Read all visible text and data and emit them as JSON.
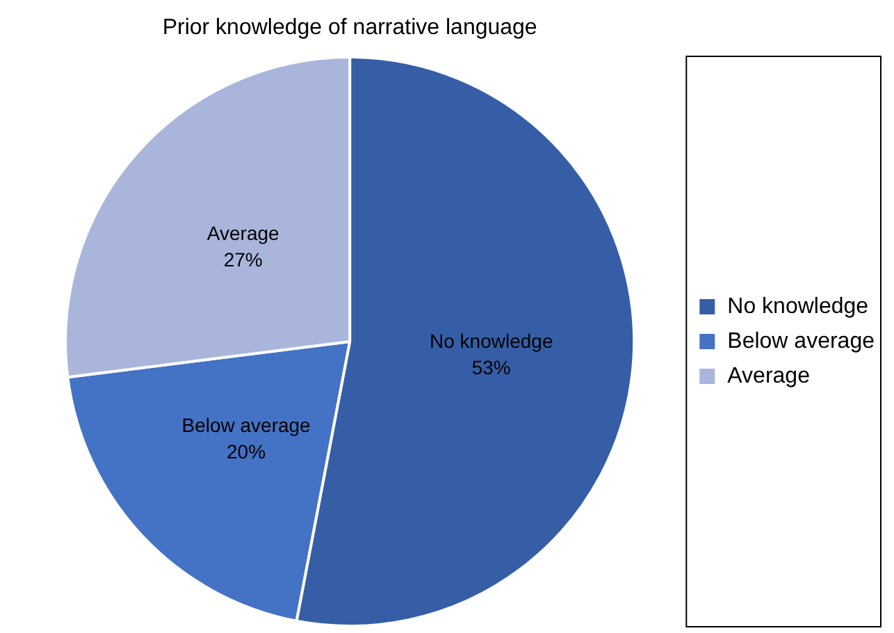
{
  "chart_data": {
    "type": "pie",
    "title": "Prior knowledge of narrative language",
    "categories": [
      "No knowledge",
      "Below average",
      "Average"
    ],
    "values": [
      53,
      20,
      27
    ],
    "value_labels": [
      "53%",
      "20%",
      "27%"
    ],
    "colors": [
      "#365ea7",
      "#4472c4",
      "#a9b5da"
    ],
    "legend": "right"
  }
}
